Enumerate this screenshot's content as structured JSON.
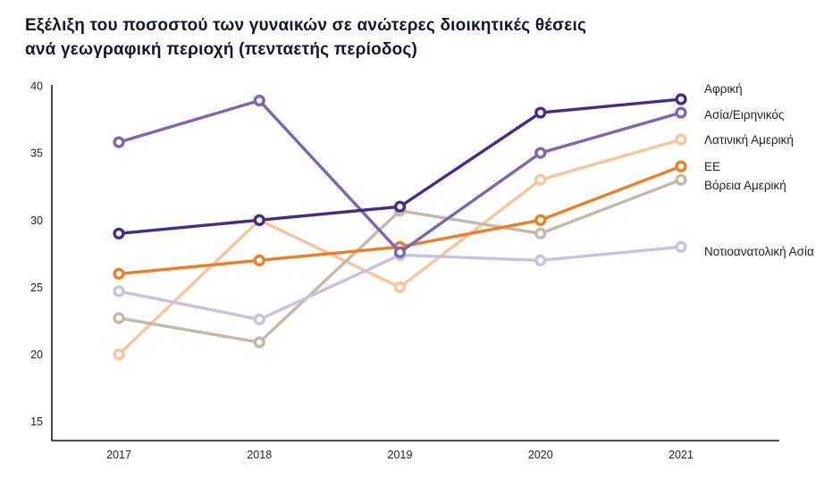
{
  "title": "Εξέλιξη του ποσοστού των γυναικών σε ανώτερες διοικητικές θέσεις\nανά γεωγραφική περιοχή (πενταετής περίοδος)",
  "chart_data": {
    "type": "line",
    "x": [
      2017,
      2018,
      2019,
      2020,
      2021
    ],
    "series": [
      {
        "key": "africa",
        "name": "Αφρική",
        "color": "#442d86",
        "values": [
          29,
          30,
          31,
          38,
          39
        ]
      },
      {
        "key": "asia-pacific",
        "name": "Ασία/Ειρηνικός",
        "color": "#7d66af",
        "values": [
          35.8,
          38.9,
          27.6,
          35,
          38
        ]
      },
      {
        "key": "latin-america",
        "name": "Λατινική Αμερική",
        "color": "#f9c499",
        "values": [
          20,
          30,
          25,
          33,
          36
        ]
      },
      {
        "key": "eu",
        "name": "ΕΕ",
        "color": "#ef7d22",
        "values": [
          26,
          27,
          28,
          30,
          34
        ]
      },
      {
        "key": "north-america",
        "name": "Βόρεια Αμερική",
        "color": "#c5b8a8",
        "values": [
          22.7,
          20.9,
          30.7,
          29,
          33
        ]
      },
      {
        "key": "southeast-asia",
        "name": "Νοτιοανατολική Ασία",
        "color": "#c6c2e4",
        "values": [
          24.7,
          22.6,
          27.4,
          27,
          28
        ]
      }
    ],
    "ylim": [
      15,
      40
    ],
    "yticks": [
      40,
      35,
      30,
      25,
      20,
      15
    ],
    "grid": false,
    "legend_position": "right",
    "marker": "open-circle",
    "axis_color": "#1a1a1a"
  }
}
